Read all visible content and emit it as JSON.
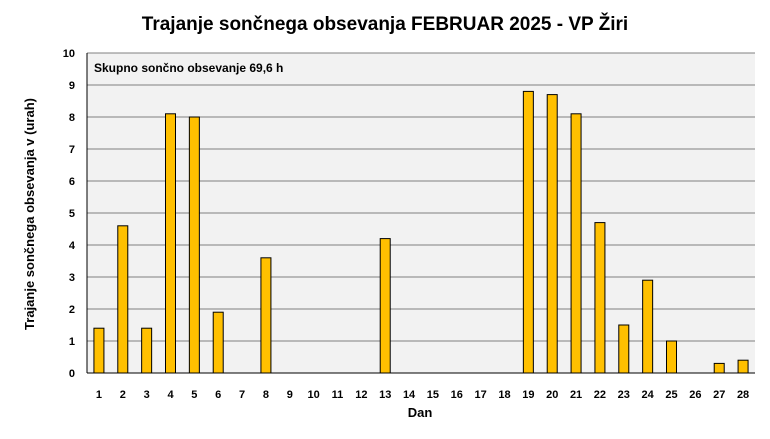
{
  "chart_data": {
    "type": "bar",
    "title": "Trajanje  sončnega obsevanja  FEBRUAR 2025 - VP Žiri",
    "xlabel": "Dan",
    "ylabel": "Trajanje  sončnega obsevanja  v (urah)",
    "annotation": "Skupno sončno obsevanje 69,6 h",
    "ylim": [
      0,
      10
    ],
    "yticks": [
      0,
      1,
      2,
      3,
      4,
      5,
      6,
      7,
      8,
      9,
      10
    ],
    "grid": true,
    "legend": "none",
    "categories": [
      "1",
      "2",
      "3",
      "4",
      "5",
      "6",
      "7",
      "8",
      "9",
      "10",
      "11",
      "12",
      "13",
      "14",
      "15",
      "16",
      "17",
      "18",
      "19",
      "20",
      "21",
      "22",
      "23",
      "24",
      "25",
      "26",
      "27",
      "28"
    ],
    "values": [
      1.4,
      4.6,
      1.4,
      8.1,
      8.0,
      1.9,
      0,
      3.6,
      0,
      0,
      0,
      0,
      4.2,
      0,
      0,
      0,
      0,
      0,
      8.8,
      8.7,
      8.1,
      4.7,
      1.5,
      2.9,
      1.0,
      0,
      0.3,
      0.4
    ],
    "colors": {
      "bar_fill": "#FFC000",
      "bar_stroke": "#000000",
      "plot_background": "#F2F2F2",
      "gridline": "#808080"
    }
  }
}
